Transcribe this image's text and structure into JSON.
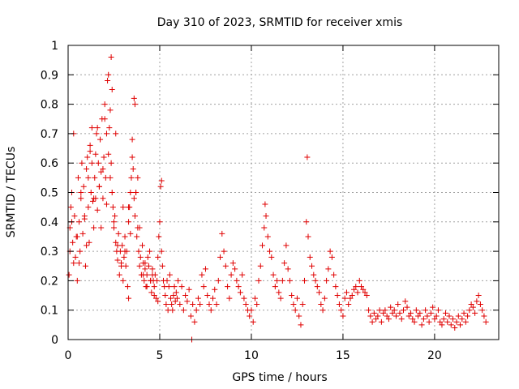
{
  "chart_data": {
    "type": "scatter",
    "title": "Day 310 of 2023, SRMTID for receiver xmis",
    "xlabel": "GPS time / hours",
    "ylabel": "SRMTID / TECUs",
    "xlim": [
      0,
      23.5
    ],
    "ylim": [
      0,
      1
    ],
    "xticks": [
      0,
      5,
      10,
      15,
      20
    ],
    "xtick_labels": [
      "0",
      "5",
      "10",
      "15",
      "20"
    ],
    "yticks": [
      0,
      0.1,
      0.2,
      0.3,
      0.4,
      0.5,
      0.6,
      0.7,
      0.8,
      0.9,
      1
    ],
    "ytick_labels": [
      "0",
      "0.1",
      "0.2",
      "0.3",
      "0.4",
      "0.5",
      "0.6",
      "0.7",
      "0.8",
      "0.9",
      "1"
    ],
    "grid": true,
    "marker": "+",
    "color": "#e00000",
    "series": [
      {
        "name": "SRMTID",
        "x": [
          0.05,
          0.1,
          0.15,
          0.2,
          0.25,
          0.3,
          0.35,
          0.4,
          0.45,
          0.5,
          0.55,
          0.6,
          0.65,
          0.7,
          0.75,
          0.8,
          0.85,
          0.9,
          0.95,
          1.0,
          1.05,
          1.1,
          1.15,
          1.2,
          1.25,
          1.3,
          1.35,
          1.4,
          1.45,
          1.5,
          1.55,
          1.6,
          1.65,
          1.7,
          1.75,
          1.8,
          1.85,
          1.9,
          1.95,
          2.0,
          2.05,
          2.1,
          2.15,
          2.2,
          2.25,
          2.3,
          2.35,
          2.4,
          2.45,
          2.5,
          2.55,
          2.6,
          2.65,
          2.7,
          2.75,
          2.8,
          2.85,
          2.9,
          2.95,
          3.0,
          3.05,
          3.1,
          3.15,
          3.2,
          3.25,
          3.3,
          3.35,
          3.4,
          3.45,
          3.5,
          3.55,
          3.6,
          3.65,
          3.7,
          3.75,
          3.8,
          3.85,
          3.9,
          3.95,
          4.0,
          4.05,
          4.1,
          4.15,
          4.2,
          4.25,
          4.3,
          4.35,
          4.4,
          4.45,
          4.5,
          4.55,
          4.6,
          4.65,
          4.7,
          4.75,
          4.8,
          4.85,
          4.9,
          4.95,
          5.0,
          5.05,
          5.1,
          5.15,
          5.2,
          5.25,
          5.3,
          5.35,
          5.4,
          5.45,
          5.5,
          5.55,
          5.6,
          5.65,
          5.7,
          5.75,
          5.8,
          5.85,
          5.9,
          5.95,
          6.0,
          6.1,
          6.2,
          6.3,
          6.4,
          6.5,
          6.6,
          6.7,
          6.8,
          6.9,
          7.0,
          7.1,
          7.2,
          7.3,
          7.4,
          7.5,
          7.6,
          7.7,
          7.8,
          7.9,
          8.0,
          8.1,
          8.2,
          8.3,
          8.4,
          8.5,
          8.6,
          8.7,
          8.8,
          8.9,
          9.0,
          9.1,
          9.2,
          9.3,
          9.4,
          9.5,
          9.6,
          9.7,
          9.8,
          9.9,
          10.0,
          10.1,
          10.2,
          10.3,
          10.4,
          10.5,
          10.6,
          10.7,
          10.8,
          10.9,
          11.0,
          11.1,
          11.2,
          11.3,
          11.4,
          11.5,
          11.6,
          11.7,
          11.8,
          11.9,
          12.0,
          12.1,
          12.2,
          12.3,
          12.4,
          12.5,
          12.6,
          12.7,
          12.8,
          12.9,
          13.0,
          13.1,
          13.2,
          13.3,
          13.4,
          13.5,
          13.6,
          13.7,
          13.8,
          13.9,
          14.0,
          14.1,
          14.2,
          14.3,
          14.4,
          14.5,
          14.6,
          14.7,
          14.8,
          14.9,
          15.0,
          15.1,
          15.2,
          15.3,
          15.4,
          15.5,
          15.6,
          15.7,
          15.8,
          15.9,
          16.0,
          16.1,
          16.2,
          16.3,
          16.4,
          16.5,
          16.6,
          16.7,
          16.8,
          16.9,
          17.0,
          17.1,
          17.2,
          17.3,
          17.4,
          17.5,
          17.6,
          17.7,
          17.8,
          17.9,
          18.0,
          18.1,
          18.2,
          18.3,
          18.4,
          18.5,
          18.6,
          18.7,
          18.8,
          18.9,
          19.0,
          19.1,
          19.2,
          19.3,
          19.4,
          19.5,
          19.6,
          19.7,
          19.8,
          19.9,
          20.0,
          20.1,
          20.2,
          20.3,
          20.4,
          20.5,
          20.6,
          20.7,
          20.8,
          20.9,
          21.0,
          21.1,
          21.2,
          21.3,
          21.4,
          21.5,
          21.6,
          21.7,
          21.8,
          21.9,
          22.0,
          22.1,
          22.2,
          22.3,
          22.4,
          22.5,
          22.6,
          22.7,
          22.8,
          0.1,
          0.3,
          0.5,
          0.7,
          0.9,
          1.1,
          1.3,
          1.5,
          1.7,
          1.9,
          2.1,
          2.3,
          2.5,
          2.7,
          2.9,
          3.1,
          3.3,
          3.5,
          3.7,
          3.9,
          4.1,
          4.3,
          4.5,
          4.7,
          4.9,
          1.2,
          1.6,
          2.0,
          2.2,
          2.35,
          2.4,
          3.6,
          3.65,
          13.05,
          10.75,
          5.1,
          6.75,
          3.3,
          0.2,
          0.6,
          1.0,
          1.4,
          1.8,
          2.6,
          3.0,
          3.4,
          3.8,
          4.2,
          4.6
        ],
        "y": [
          0.22,
          0.38,
          0.45,
          0.5,
          0.33,
          0.7,
          0.42,
          0.28,
          0.35,
          0.2,
          0.55,
          0.4,
          0.3,
          0.48,
          0.6,
          0.36,
          0.52,
          0.41,
          0.25,
          0.58,
          0.62,
          0.45,
          0.33,
          0.66,
          0.5,
          0.72,
          0.47,
          0.38,
          0.55,
          0.63,
          0.7,
          0.44,
          0.6,
          0.52,
          0.68,
          0.57,
          0.75,
          0.48,
          0.62,
          0.8,
          0.55,
          0.7,
          0.88,
          0.63,
          0.72,
          0.78,
          0.6,
          0.5,
          0.45,
          0.38,
          0.42,
          0.33,
          0.3,
          0.27,
          0.36,
          0.22,
          0.3,
          0.25,
          0.32,
          0.2,
          0.28,
          0.35,
          0.25,
          0.3,
          0.18,
          0.4,
          0.45,
          0.5,
          0.55,
          0.62,
          0.58,
          0.48,
          0.42,
          0.5,
          0.35,
          0.38,
          0.3,
          0.25,
          0.28,
          0.22,
          0.32,
          0.26,
          0.2,
          0.24,
          0.18,
          0.22,
          0.28,
          0.25,
          0.3,
          0.2,
          0.16,
          0.24,
          0.2,
          0.18,
          0.22,
          0.14,
          0.2,
          0.28,
          0.35,
          0.4,
          0.52,
          0.3,
          0.25,
          0.2,
          0.18,
          0.15,
          0.12,
          0.2,
          0.1,
          0.18,
          0.22,
          0.14,
          0.12,
          0.1,
          0.15,
          0.18,
          0.13,
          0.16,
          0.14,
          0.2,
          0.12,
          0.18,
          0.1,
          0.15,
          0.13,
          0.17,
          0.08,
          0.12,
          0.06,
          0.1,
          0.14,
          0.12,
          0.22,
          0.18,
          0.24,
          0.15,
          0.12,
          0.1,
          0.14,
          0.17,
          0.12,
          0.2,
          0.28,
          0.36,
          0.3,
          0.25,
          0.18,
          0.14,
          0.22,
          0.26,
          0.24,
          0.2,
          0.18,
          0.16,
          0.22,
          0.14,
          0.12,
          0.1,
          0.08,
          0.1,
          0.06,
          0.14,
          0.12,
          0.2,
          0.25,
          0.32,
          0.38,
          0.42,
          0.35,
          0.3,
          0.28,
          0.22,
          0.18,
          0.2,
          0.16,
          0.14,
          0.2,
          0.26,
          0.32,
          0.24,
          0.2,
          0.15,
          0.12,
          0.1,
          0.14,
          0.08,
          0.05,
          0.12,
          0.2,
          0.4,
          0.35,
          0.28,
          0.25,
          0.22,
          0.2,
          0.18,
          0.16,
          0.12,
          0.1,
          0.14,
          0.2,
          0.24,
          0.3,
          0.28,
          0.22,
          0.18,
          0.15,
          0.12,
          0.1,
          0.08,
          0.14,
          0.16,
          0.12,
          0.14,
          0.15,
          0.17,
          0.18,
          0.16,
          0.2,
          0.18,
          0.17,
          0.16,
          0.15,
          0.1,
          0.08,
          0.06,
          0.09,
          0.07,
          0.08,
          0.1,
          0.06,
          0.09,
          0.1,
          0.08,
          0.07,
          0.11,
          0.09,
          0.1,
          0.08,
          0.12,
          0.09,
          0.07,
          0.1,
          0.13,
          0.11,
          0.08,
          0.09,
          0.07,
          0.06,
          0.1,
          0.08,
          0.09,
          0.05,
          0.07,
          0.1,
          0.08,
          0.06,
          0.09,
          0.11,
          0.07,
          0.08,
          0.1,
          0.06,
          0.05,
          0.07,
          0.09,
          0.06,
          0.08,
          0.05,
          0.07,
          0.04,
          0.06,
          0.08,
          0.05,
          0.07,
          0.09,
          0.06,
          0.08,
          0.1,
          0.12,
          0.11,
          0.09,
          0.13,
          0.15,
          0.12,
          0.1,
          0.08,
          0.06,
          0.3,
          0.26,
          0.35,
          0.5,
          0.42,
          0.55,
          0.6,
          0.48,
          0.52,
          0.58,
          0.46,
          0.55,
          0.4,
          0.32,
          0.26,
          0.3,
          0.45,
          0.68,
          0.5,
          0.38,
          0.22,
          0.18,
          0.2,
          0.15,
          0.13,
          0.64,
          0.72,
          0.75,
          0.9,
          0.96,
          0.85,
          0.82,
          0.8,
          0.62,
          0.46,
          0.54,
          0.0,
          0.14,
          0.4,
          0.26,
          0.32,
          0.48,
          0.38,
          0.7,
          0.45,
          0.36,
          0.55,
          0.26,
          0.22
        ]
      }
    ]
  }
}
